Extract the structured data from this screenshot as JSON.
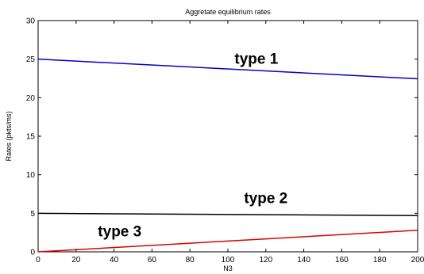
{
  "chart_data": {
    "type": "line",
    "title": "Aggretate equilibrium rates",
    "xlabel": "N3",
    "ylabel": "Rates (pkts/ms)",
    "xlim": [
      0,
      200
    ],
    "ylim": [
      0,
      30
    ],
    "xticks": [
      0,
      20,
      40,
      60,
      80,
      100,
      120,
      140,
      160,
      180,
      200
    ],
    "yticks": [
      0,
      5,
      10,
      15,
      20,
      25,
      30
    ],
    "grid": false,
    "series": [
      {
        "name": "type 1",
        "color": "#0000cc",
        "x": [
          0,
          200
        ],
        "y": [
          25,
          22.45
        ]
      },
      {
        "name": "type 2",
        "color": "#000000",
        "x": [
          0,
          200
        ],
        "y": [
          5.0,
          4.7
        ]
      },
      {
        "name": "type 3",
        "color": "#dd0000",
        "x": [
          0,
          200
        ],
        "y": [
          0,
          2.8
        ]
      }
    ],
    "annotations": [
      {
        "text": "type 1",
        "x": 115,
        "y": 24.4
      },
      {
        "text": "type 2",
        "x": 120,
        "y": 6.3
      },
      {
        "text": "type 3",
        "x": 43,
        "y": 2.0
      }
    ]
  }
}
